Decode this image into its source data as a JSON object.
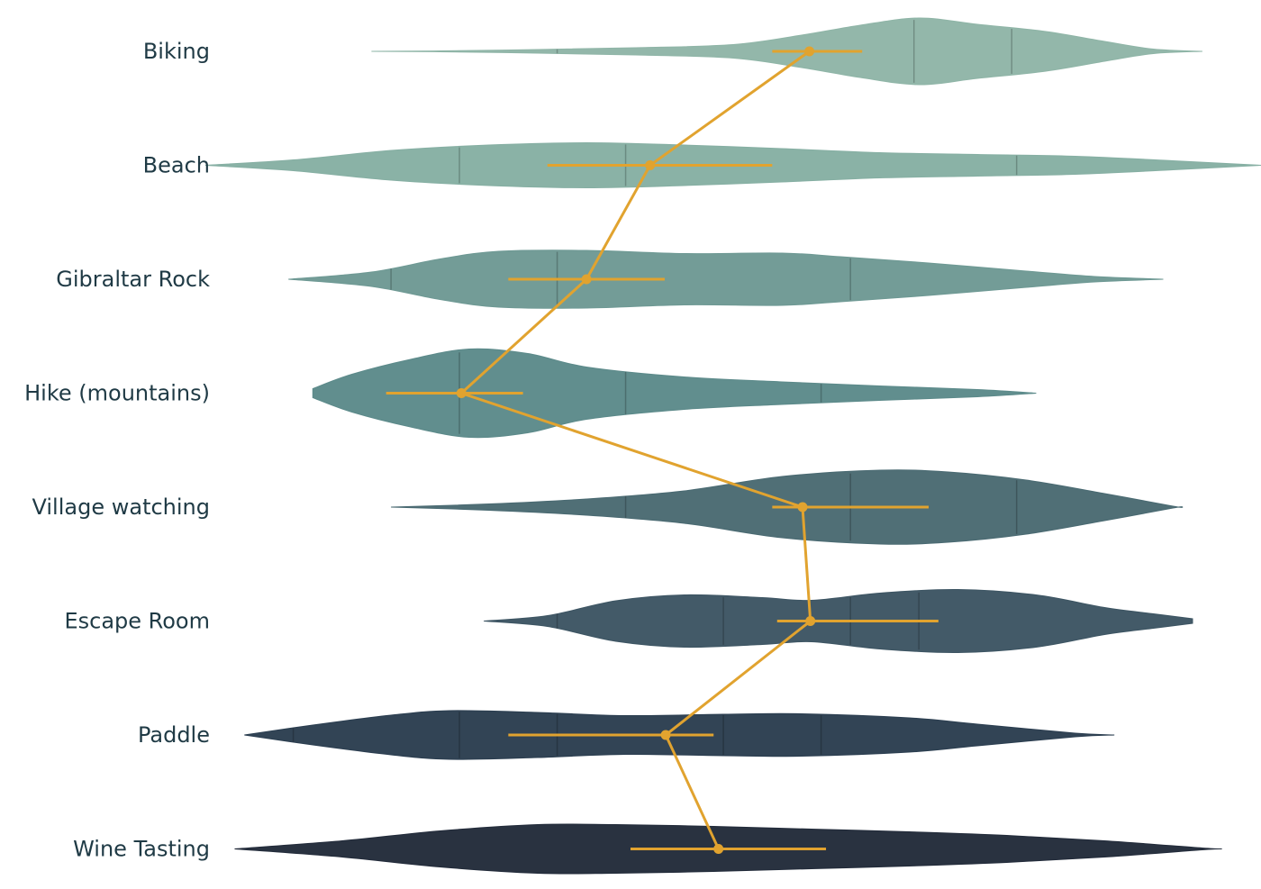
{
  "chart_data": {
    "type": "violin",
    "title": "",
    "xlabel": "",
    "ylabel": "",
    "xlim": [
      1,
      13.9
    ],
    "grid": false,
    "mean_line_color": "#E1A32F",
    "categories": [
      {
        "name": "Biking",
        "color": "#8FB5A7",
        "mean": 9.28,
        "ci": [
          8.9,
          9.82
        ],
        "quartiles": [
          6.7,
          10.35,
          11.35
        ],
        "density": [
          [
            4.8,
            0.0
          ],
          [
            5.5,
            0.01
          ],
          [
            6.5,
            0.04
          ],
          [
            7.5,
            0.08
          ],
          [
            8.5,
            0.15
          ],
          [
            9.2,
            0.36
          ],
          [
            9.8,
            0.58
          ],
          [
            10.4,
            0.74
          ],
          [
            11.0,
            0.6
          ],
          [
            11.7,
            0.44
          ],
          [
            12.3,
            0.22
          ],
          [
            12.8,
            0.05
          ],
          [
            13.3,
            0.0
          ]
        ]
      },
      {
        "name": "Beach",
        "color": "#86AFA3",
        "mean": 7.65,
        "ci": [
          6.6,
          8.9
        ],
        "quartiles": [
          5.7,
          7.4,
          11.4
        ],
        "density": [
          [
            3.1,
            0.0
          ],
          [
            4.0,
            0.12
          ],
          [
            5.0,
            0.33
          ],
          [
            6.0,
            0.45
          ],
          [
            7.0,
            0.5
          ],
          [
            8.0,
            0.45
          ],
          [
            9.0,
            0.37
          ],
          [
            10.0,
            0.28
          ],
          [
            11.0,
            0.24
          ],
          [
            12.0,
            0.2
          ],
          [
            13.0,
            0.1
          ],
          [
            13.9,
            0.0
          ]
        ]
      },
      {
        "name": "Gibraltar Rock",
        "color": "#6E9994",
        "mean": 7.0,
        "ci": [
          6.2,
          7.8
        ],
        "quartiles": [
          5.0,
          6.7,
          9.7
        ],
        "density": [
          [
            3.95,
            0.0
          ],
          [
            4.8,
            0.16
          ],
          [
            5.5,
            0.45
          ],
          [
            6.1,
            0.62
          ],
          [
            7.0,
            0.64
          ],
          [
            8.0,
            0.57
          ],
          [
            9.0,
            0.58
          ],
          [
            9.6,
            0.5
          ],
          [
            10.5,
            0.36
          ],
          [
            11.5,
            0.18
          ],
          [
            12.2,
            0.06
          ],
          [
            12.9,
            0.0
          ]
        ]
      },
      {
        "name": "Hike (mountains)",
        "color": "#5C8A8A",
        "mean": 5.72,
        "ci": [
          4.95,
          6.35
        ],
        "quartiles": [
          5.7,
          7.4,
          9.4
        ],
        "density": [
          [
            4.2,
            0.1
          ],
          [
            4.6,
            0.42
          ],
          [
            5.2,
            0.75
          ],
          [
            5.8,
            0.98
          ],
          [
            6.4,
            0.88
          ],
          [
            7.0,
            0.58
          ],
          [
            8.0,
            0.36
          ],
          [
            9.0,
            0.25
          ],
          [
            10.0,
            0.16
          ],
          [
            11.0,
            0.08
          ],
          [
            11.6,
            0.0
          ]
        ]
      },
      {
        "name": "Village watching",
        "color": "#4A6A72",
        "mean": 9.21,
        "ci": [
          8.9,
          10.5
        ],
        "quartiles": [
          7.4,
          9.7,
          11.4
        ],
        "density": [
          [
            5.0,
            0.0
          ],
          [
            6.0,
            0.07
          ],
          [
            7.0,
            0.18
          ],
          [
            8.0,
            0.36
          ],
          [
            9.0,
            0.68
          ],
          [
            10.0,
            0.82
          ],
          [
            10.7,
            0.78
          ],
          [
            11.5,
            0.6
          ],
          [
            12.3,
            0.3
          ],
          [
            13.0,
            0.02
          ],
          [
            13.1,
            0.0
          ]
        ]
      },
      {
        "name": "Escape Room",
        "color": "#3D5563",
        "mean": 9.29,
        "ci": [
          8.95,
          10.6
        ],
        "quartiles": [
          6.7,
          8.4,
          9.7,
          10.4
        ],
        "density": [
          [
            5.95,
            0.0
          ],
          [
            6.6,
            0.12
          ],
          [
            7.3,
            0.45
          ],
          [
            8.0,
            0.58
          ],
          [
            8.8,
            0.52
          ],
          [
            9.3,
            0.46
          ],
          [
            10.0,
            0.62
          ],
          [
            10.8,
            0.7
          ],
          [
            11.6,
            0.58
          ],
          [
            12.3,
            0.3
          ],
          [
            12.8,
            0.16
          ],
          [
            13.2,
            0.05
          ]
        ]
      },
      {
        "name": "Paddle",
        "color": "#2B3E50",
        "mean": 7.81,
        "ci": [
          6.2,
          8.3
        ],
        "quartiles": [
          4.0,
          5.7,
          6.7,
          8.4,
          9.4
        ],
        "density": [
          [
            3.5,
            0.0
          ],
          [
            4.2,
            0.22
          ],
          [
            5.0,
            0.44
          ],
          [
            5.6,
            0.54
          ],
          [
            6.5,
            0.5
          ],
          [
            7.4,
            0.43
          ],
          [
            8.4,
            0.46
          ],
          [
            9.2,
            0.47
          ],
          [
            10.3,
            0.38
          ],
          [
            11.0,
            0.24
          ],
          [
            12.0,
            0.04
          ],
          [
            12.4,
            0.0
          ]
        ]
      },
      {
        "name": "Wine Tasting",
        "color": "#222B3A",
        "mean": 8.35,
        "ci": [
          7.45,
          9.45
        ],
        "quartiles": [],
        "density": [
          [
            3.4,
            0.0
          ],
          [
            4.5,
            0.18
          ],
          [
            5.5,
            0.4
          ],
          [
            6.5,
            0.54
          ],
          [
            7.3,
            0.54
          ],
          [
            8.3,
            0.5
          ],
          [
            9.3,
            0.44
          ],
          [
            10.3,
            0.38
          ],
          [
            11.3,
            0.3
          ],
          [
            12.3,
            0.18
          ],
          [
            13.3,
            0.02
          ],
          [
            13.5,
            0.0
          ]
        ]
      }
    ]
  }
}
